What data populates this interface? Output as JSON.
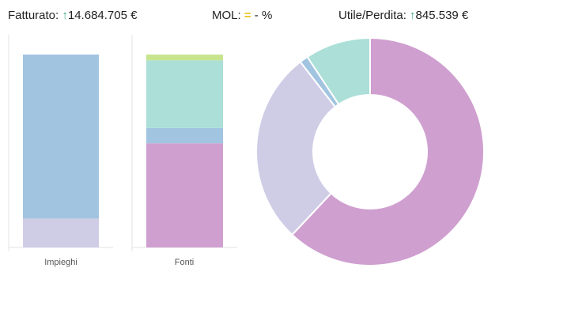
{
  "kpis": {
    "fatturato": {
      "label": "Fatturato:",
      "icon": "arrow-up-icon",
      "value": "14.684.705 €"
    },
    "mol": {
      "label": "MOL:",
      "icon": "equals-icon",
      "value": "- %"
    },
    "utile": {
      "label": "Utile/Perdita:",
      "icon": "arrow-up-icon",
      "value": "845.539 €"
    }
  },
  "colors": {
    "up": "#3aa57a",
    "equal": "#e8c21a"
  },
  "chart_data": [
    {
      "type": "bar",
      "stacked": true,
      "categories": [
        "Impieghi",
        "Fonti"
      ],
      "series": [
        {
          "color": "#cfcde6",
          "values": [
            15,
            0
          ]
        },
        {
          "color": "#a1c4e0",
          "values": [
            85,
            0
          ]
        }
      ],
      "fonti_segments": [
        {
          "color": "#cf9fcf",
          "value": 54
        },
        {
          "color": "#a1c4e0",
          "value": 8
        },
        {
          "color": "#abdfd8",
          "value": 35
        },
        {
          "color": "#c7e58f",
          "value": 3
        }
      ],
      "ylim": [
        0,
        100
      ],
      "grid": false
    },
    {
      "type": "pie",
      "donut": true,
      "slices": [
        {
          "color": "#cf9fcf",
          "value": 62
        },
        {
          "color": "#cfcde6",
          "value": 27.5
        },
        {
          "color": "#a1c4e0",
          "value": 1.2
        },
        {
          "color": "#abdfd8",
          "value": 9.3
        }
      ]
    }
  ]
}
